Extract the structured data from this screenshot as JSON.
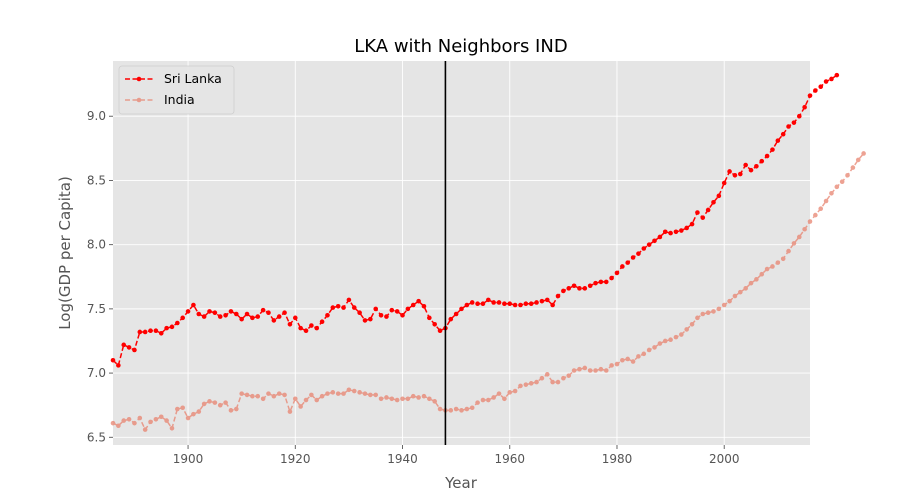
{
  "chart_data": {
    "type": "line",
    "title": "LKA with Neighbors IND",
    "xlabel": "Year",
    "ylabel": "Log(GDP per Capita)",
    "xlim": [
      1886,
      2016
    ],
    "ylim": [
      6.44,
      9.43
    ],
    "x_ticks": [
      1900,
      1920,
      1940,
      1960,
      1980,
      2000
    ],
    "y_ticks": [
      6.5,
      7.0,
      7.5,
      8.0,
      8.5,
      9.0
    ],
    "grid": true,
    "legend_position": "top-left",
    "vertical_line": {
      "x": 1948,
      "color": "#000000"
    },
    "series": [
      {
        "name": "Sri Lanka",
        "color": "#ff0000",
        "style": "dashed",
        "opacity": 1.0,
        "x_start": 1886,
        "values": [
          7.1,
          7.06,
          7.22,
          7.2,
          7.18,
          7.32,
          7.32,
          7.33,
          7.33,
          7.31,
          7.35,
          7.36,
          7.39,
          7.43,
          7.48,
          7.53,
          7.46,
          7.44,
          7.48,
          7.47,
          7.44,
          7.45,
          7.48,
          7.46,
          7.42,
          7.46,
          7.43,
          7.44,
          7.49,
          7.47,
          7.41,
          7.44,
          7.47,
          7.38,
          7.43,
          7.35,
          7.33,
          7.37,
          7.35,
          7.4,
          7.45,
          7.51,
          7.52,
          7.51,
          7.57,
          7.51,
          7.47,
          7.41,
          7.42,
          7.5,
          7.45,
          7.44,
          7.49,
          7.48,
          7.45,
          7.5,
          7.53,
          7.56,
          7.52,
          7.43,
          7.38,
          7.33,
          7.35,
          7.42,
          7.46,
          7.5,
          7.53,
          7.55,
          7.54,
          7.54,
          7.57,
          7.55,
          7.55,
          7.54,
          7.54,
          7.53,
          7.53,
          7.54,
          7.54,
          7.55,
          7.56,
          7.57,
          7.53,
          7.6,
          7.64,
          7.66,
          7.68,
          7.66,
          7.66,
          7.68,
          7.7,
          7.71,
          7.71,
          7.74,
          7.78,
          7.83,
          7.86,
          7.9,
          7.93,
          7.97,
          8.0,
          8.03,
          8.06,
          8.1,
          8.09,
          8.1,
          8.11,
          8.13,
          8.16,
          8.25,
          8.21,
          8.27,
          8.33,
          8.38,
          8.48,
          8.57,
          8.54,
          8.55,
          8.62,
          8.58,
          8.61,
          8.65,
          8.69,
          8.74,
          8.81,
          8.86,
          8.92,
          8.95,
          9.0,
          9.07,
          9.16,
          9.2,
          9.23,
          9.27,
          9.29,
          9.32
        ]
      },
      {
        "name": "India",
        "color": "#e8836f",
        "style": "dashed",
        "opacity": 0.75,
        "x_start": 1886,
        "values": [
          6.61,
          6.59,
          6.63,
          6.64,
          6.61,
          6.65,
          6.56,
          6.62,
          6.64,
          6.66,
          6.63,
          6.57,
          6.72,
          6.73,
          6.65,
          6.68,
          6.7,
          6.76,
          6.78,
          6.77,
          6.75,
          6.77,
          6.71,
          6.72,
          6.84,
          6.83,
          6.82,
          6.82,
          6.8,
          6.84,
          6.82,
          6.84,
          6.83,
          6.7,
          6.8,
          6.74,
          6.79,
          6.83,
          6.79,
          6.82,
          6.84,
          6.85,
          6.84,
          6.84,
          6.87,
          6.86,
          6.85,
          6.84,
          6.83,
          6.83,
          6.8,
          6.81,
          6.8,
          6.79,
          6.8,
          6.8,
          6.82,
          6.81,
          6.82,
          6.8,
          6.78,
          6.72,
          6.71,
          6.71,
          6.72,
          6.71,
          6.72,
          6.73,
          6.77,
          6.79,
          6.79,
          6.81,
          6.84,
          6.8,
          6.85,
          6.86,
          6.9,
          6.91,
          6.92,
          6.93,
          6.96,
          6.99,
          6.93,
          6.93,
          6.96,
          6.98,
          7.02,
          7.03,
          7.04,
          7.02,
          7.02,
          7.03,
          7.02,
          7.06,
          7.07,
          7.1,
          7.11,
          7.09,
          7.13,
          7.15,
          7.18,
          7.2,
          7.23,
          7.25,
          7.26,
          7.28,
          7.3,
          7.34,
          7.38,
          7.43,
          7.46,
          7.47,
          7.48,
          7.5,
          7.53,
          7.56,
          7.6,
          7.63,
          7.66,
          7.7,
          7.73,
          7.77,
          7.81,
          7.83,
          7.86,
          7.89,
          7.95,
          8.01,
          8.06,
          8.12,
          8.18,
          8.23,
          8.28,
          8.34,
          8.4,
          8.45,
          8.49,
          8.54,
          8.6,
          8.66,
          8.71
        ]
      }
    ]
  }
}
